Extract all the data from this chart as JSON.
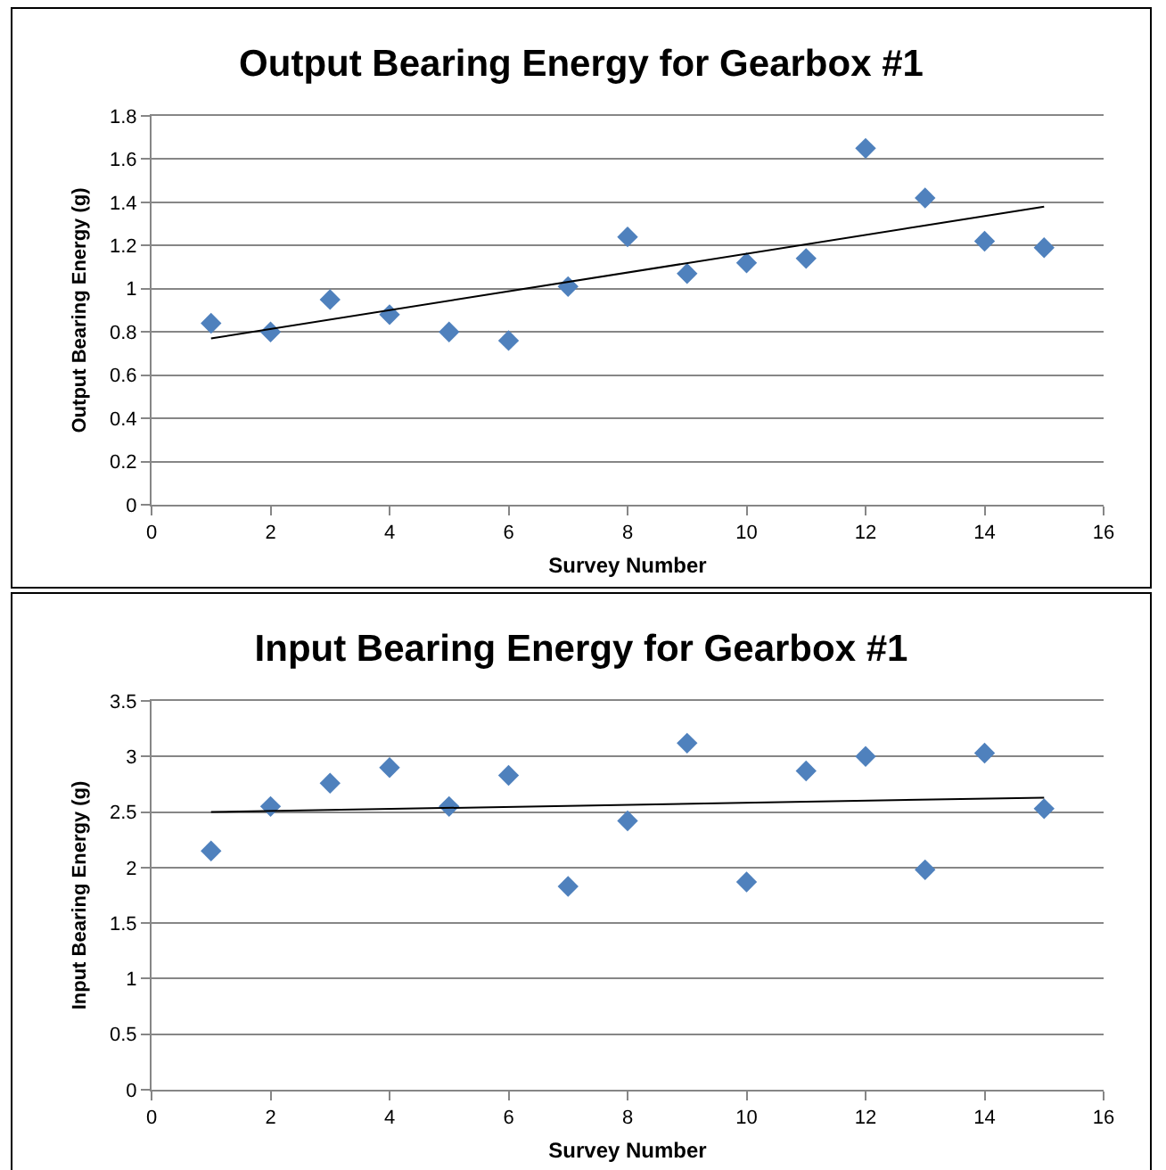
{
  "chart_data": [
    {
      "type": "scatter",
      "title": "Output Bearing Energy for Gearbox #1",
      "xlabel": "Survey Number",
      "ylabel": "Output Bearing Energy (g)",
      "xlim": [
        0,
        16
      ],
      "xticks": [
        0,
        2,
        4,
        6,
        8,
        10,
        12,
        14,
        16
      ],
      "ylim": [
        0,
        1.8
      ],
      "yticks": [
        0,
        0.2,
        0.4,
        0.6,
        0.8,
        1,
        1.2,
        1.4,
        1.6,
        1.8
      ],
      "grid": "y",
      "series": [
        {
          "type": "scatter",
          "marker": "diamond",
          "color": "#4f81bd",
          "x": [
            1,
            2,
            3,
            4,
            5,
            6,
            7,
            8,
            9,
            10,
            11,
            12,
            13,
            14,
            15
          ],
          "values": [
            0.84,
            0.8,
            0.95,
            0.88,
            0.8,
            0.76,
            1.01,
            1.24,
            1.07,
            1.12,
            1.14,
            1.65,
            1.42,
            1.22,
            1.19
          ]
        },
        {
          "type": "line",
          "color": "#000000",
          "line_style": "solid",
          "x": [
            1,
            15
          ],
          "values": [
            0.77,
            1.38
          ]
        }
      ]
    },
    {
      "type": "scatter",
      "title": "Input Bearing Energy for Gearbox #1",
      "xlabel": "Survey Number",
      "ylabel": "Input Bearing Energy (g)",
      "xlim": [
        0,
        16
      ],
      "xticks": [
        0,
        2,
        4,
        6,
        8,
        10,
        12,
        14,
        16
      ],
      "ylim": [
        0,
        3.5
      ],
      "yticks": [
        0,
        0.5,
        1,
        1.5,
        2,
        2.5,
        3,
        3.5
      ],
      "grid": "y",
      "series": [
        {
          "type": "scatter",
          "marker": "diamond",
          "color": "#4f81bd",
          "x": [
            1,
            2,
            3,
            4,
            5,
            6,
            7,
            8,
            9,
            10,
            11,
            12,
            13,
            14,
            15
          ],
          "values": [
            2.15,
            2.55,
            2.76,
            2.9,
            2.55,
            2.83,
            1.83,
            2.42,
            3.12,
            1.87,
            2.87,
            3.0,
            1.98,
            3.03,
            2.53
          ]
        },
        {
          "type": "line",
          "color": "#000000",
          "line_style": "solid",
          "x": [
            1,
            15
          ],
          "values": [
            2.5,
            2.63
          ]
        }
      ]
    }
  ]
}
